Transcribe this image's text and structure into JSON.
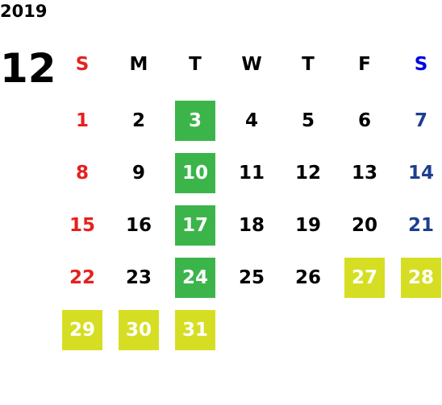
{
  "year": "2019",
  "month": "12",
  "weekdays": [
    {
      "label": "S",
      "color": "#e5211d"
    },
    {
      "label": "M",
      "color": "#000000"
    },
    {
      "label": "T",
      "color": "#000000"
    },
    {
      "label": "W",
      "color": "#000000"
    },
    {
      "label": "T",
      "color": "#000000"
    },
    {
      "label": "F",
      "color": "#000000"
    },
    {
      "label": "S",
      "color": "#0000e6"
    }
  ],
  "day_colors": [
    "#e5211d",
    "#000000",
    "#000000",
    "#000000",
    "#000000",
    "#000000",
    "#1d3f8f"
  ],
  "weeks": [
    [
      {
        "day": 1
      },
      {
        "day": 2
      },
      {
        "day": 3,
        "fill": "#3bb54a"
      },
      {
        "day": 4
      },
      {
        "day": 5
      },
      {
        "day": 6
      },
      {
        "day": 7
      }
    ],
    [
      {
        "day": 8
      },
      {
        "day": 9
      },
      {
        "day": 10,
        "fill": "#3bb54a"
      },
      {
        "day": 11
      },
      {
        "day": 12
      },
      {
        "day": 13
      },
      {
        "day": 14
      }
    ],
    [
      {
        "day": 15
      },
      {
        "day": 16
      },
      {
        "day": 17,
        "fill": "#3bb54a"
      },
      {
        "day": 18
      },
      {
        "day": 19
      },
      {
        "day": 20
      },
      {
        "day": 21
      }
    ],
    [
      {
        "day": 22
      },
      {
        "day": 23
      },
      {
        "day": 24,
        "fill": "#3bb54a"
      },
      {
        "day": 25
      },
      {
        "day": 26
      },
      {
        "day": 27,
        "fill": "#d6de23"
      },
      {
        "day": 28,
        "fill": "#d6de23"
      }
    ],
    [
      {
        "day": 29,
        "fill": "#d6de23"
      },
      {
        "day": 30,
        "fill": "#d6de23"
      },
      {
        "day": 31,
        "fill": "#d6de23"
      },
      null,
      null,
      null,
      null
    ]
  ]
}
